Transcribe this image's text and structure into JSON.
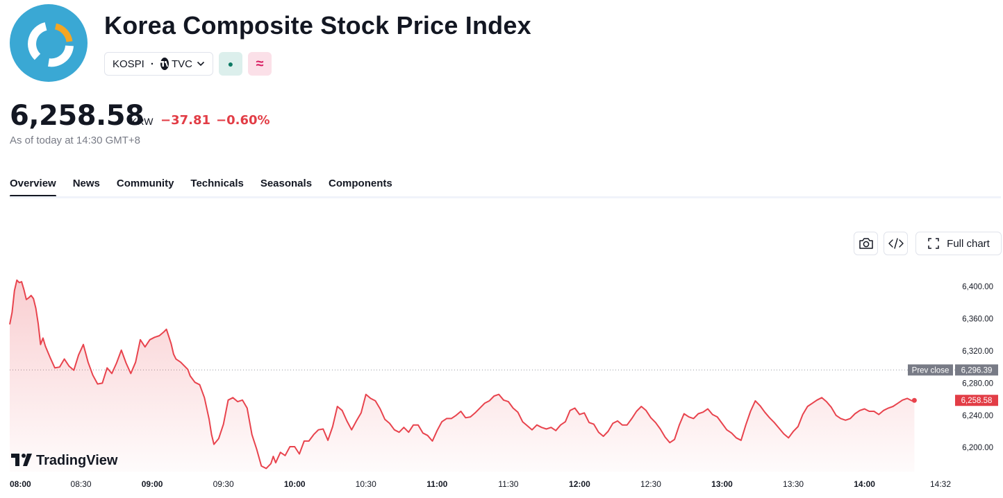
{
  "header": {
    "title": "Korea Composite Stock Price Index",
    "symbol": "KOSPI",
    "separator": "·",
    "exchange": "TVC",
    "market_status_glyph": "●",
    "delay_glyph": "≈"
  },
  "quote": {
    "price": "6,258.58",
    "currency": "KRW",
    "change": "−37.81",
    "change_percent": "−0.60%",
    "as_of": "As of today at 14:30 GMT+8"
  },
  "tabs": [
    {
      "label": "Overview",
      "active": true
    },
    {
      "label": "News",
      "active": false
    },
    {
      "label": "Community",
      "active": false
    },
    {
      "label": "Technicals",
      "active": false
    },
    {
      "label": "Seasonals",
      "active": false
    },
    {
      "label": "Components",
      "active": false
    }
  ],
  "toolbar": {
    "snapshot_icon": "camera-icon",
    "embed_icon": "code-icon",
    "full_chart_label": "Full chart"
  },
  "branding": {
    "watermark": "TradingView"
  },
  "colors": {
    "accent_red": "#e23d46",
    "line": "#e8434d",
    "prev_close_badge": "#787b86",
    "logo_blue": "#3aa8d4",
    "logo_orange": "#f5a623"
  },
  "chart_data": {
    "type": "area",
    "y_range": [
      6170,
      6420
    ],
    "y_ticks": [
      {
        "value": 6400,
        "label": "6,400.00"
      },
      {
        "value": 6360,
        "label": "6,360.00"
      },
      {
        "value": 6320,
        "label": "6,320.00"
      },
      {
        "value": 6280,
        "label": "6,280.00"
      },
      {
        "value": 6240,
        "label": "6,240.00"
      },
      {
        "value": 6200,
        "label": "6,200.00"
      }
    ],
    "x_ticks": [
      {
        "t": 0,
        "label": "08:00",
        "bold": true
      },
      {
        "t": 30,
        "label": "08:30",
        "bold": false
      },
      {
        "t": 60,
        "label": "09:00",
        "bold": true
      },
      {
        "t": 90,
        "label": "09:30",
        "bold": false
      },
      {
        "t": 120,
        "label": "10:00",
        "bold": true
      },
      {
        "t": 150,
        "label": "10:30",
        "bold": false
      },
      {
        "t": 180,
        "label": "11:00",
        "bold": true
      },
      {
        "t": 210,
        "label": "11:30",
        "bold": false
      },
      {
        "t": 240,
        "label": "12:00",
        "bold": true
      },
      {
        "t": 270,
        "label": "12:30",
        "bold": false
      },
      {
        "t": 300,
        "label": "13:00",
        "bold": true
      },
      {
        "t": 330,
        "label": "13:30",
        "bold": false
      },
      {
        "t": 360,
        "label": "14:00",
        "bold": true
      },
      {
        "t": 392,
        "label": "14:32",
        "bold": false
      }
    ],
    "t_range": [
      0,
      392
    ],
    "prev_close": {
      "value": 6296.39,
      "label": "Prev close",
      "value_label": "6,296.39"
    },
    "last": {
      "value": 6258.58,
      "label": "6,258.58"
    },
    "series": [
      {
        "values": [
          [
            0,
            6353
          ],
          [
            1,
            6368
          ],
          [
            2,
            6395
          ],
          [
            3,
            6408
          ],
          [
            4,
            6405
          ],
          [
            5,
            6406
          ],
          [
            6,
            6396
          ],
          [
            7,
            6384
          ],
          [
            8,
            6386
          ],
          [
            9,
            6389
          ],
          [
            10,
            6385
          ],
          [
            11,
            6373
          ],
          [
            12,
            6354
          ],
          [
            13,
            6328
          ],
          [
            14,
            6336
          ],
          [
            15,
            6326
          ],
          [
            17,
            6312
          ],
          [
            19,
            6299
          ],
          [
            21,
            6300
          ],
          [
            23,
            6310
          ],
          [
            25,
            6301
          ],
          [
            27,
            6296
          ],
          [
            29,
            6315
          ],
          [
            31,
            6328
          ],
          [
            33,
            6306
          ],
          [
            35,
            6290
          ],
          [
            37,
            6279
          ],
          [
            39,
            6280
          ],
          [
            41,
            6299
          ],
          [
            43,
            6292
          ],
          [
            45,
            6305
          ],
          [
            47,
            6321
          ],
          [
            49,
            6305
          ],
          [
            51,
            6292
          ],
          [
            53,
            6306
          ],
          [
            55,
            6334
          ],
          [
            57,
            6325
          ],
          [
            59,
            6334
          ],
          [
            61,
            6337
          ],
          [
            63,
            6339
          ],
          [
            65,
            6344
          ],
          [
            66,
            6347
          ],
          [
            68,
            6329
          ],
          [
            69,
            6316
          ],
          [
            70,
            6310
          ],
          [
            72,
            6306
          ],
          [
            74,
            6300
          ],
          [
            75,
            6297
          ],
          [
            76,
            6289
          ],
          [
            78,
            6281
          ],
          [
            80,
            6278
          ],
          [
            82,
            6262
          ],
          [
            84,
            6235
          ],
          [
            85,
            6216
          ],
          [
            86,
            6204
          ],
          [
            88,
            6211
          ],
          [
            90,
            6229
          ],
          [
            92,
            6259
          ],
          [
            94,
            6262
          ],
          [
            96,
            6257
          ],
          [
            98,
            6259
          ],
          [
            100,
            6249
          ],
          [
            102,
            6216
          ],
          [
            103,
            6207
          ],
          [
            104,
            6198
          ],
          [
            106,
            6177
          ],
          [
            108,
            6174
          ],
          [
            110,
            6180
          ],
          [
            111,
            6189
          ],
          [
            112,
            6181
          ],
          [
            114,
            6194
          ],
          [
            116,
            6190
          ],
          [
            118,
            6201
          ],
          [
            120,
            6201
          ],
          [
            122,
            6192
          ],
          [
            124,
            6208
          ],
          [
            126,
            6208
          ],
          [
            128,
            6216
          ],
          [
            130,
            6222
          ],
          [
            132,
            6223
          ],
          [
            134,
            6209
          ],
          [
            136,
            6226
          ],
          [
            138,
            6251
          ],
          [
            140,
            6246
          ],
          [
            142,
            6233
          ],
          [
            144,
            6222
          ],
          [
            146,
            6233
          ],
          [
            148,
            6243
          ],
          [
            150,
            6266
          ],
          [
            152,
            6261
          ],
          [
            154,
            6258
          ],
          [
            156,
            6248
          ],
          [
            158,
            6235
          ],
          [
            160,
            6230
          ],
          [
            162,
            6222
          ],
          [
            164,
            6219
          ],
          [
            166,
            6225
          ],
          [
            168,
            6219
          ],
          [
            170,
            6228
          ],
          [
            172,
            6228
          ],
          [
            174,
            6218
          ],
          [
            176,
            6215
          ],
          [
            178,
            6208
          ],
          [
            180,
            6221
          ],
          [
            182,
            6232
          ],
          [
            184,
            6236
          ],
          [
            186,
            6236
          ],
          [
            188,
            6240
          ],
          [
            190,
            6245
          ],
          [
            192,
            6237
          ],
          [
            194,
            6238
          ],
          [
            196,
            6243
          ],
          [
            198,
            6249
          ],
          [
            200,
            6255
          ],
          [
            202,
            6258
          ],
          [
            204,
            6264
          ],
          [
            206,
            6266
          ],
          [
            208,
            6259
          ],
          [
            210,
            6257
          ],
          [
            212,
            6249
          ],
          [
            214,
            6244
          ],
          [
            216,
            6232
          ],
          [
            218,
            6227
          ],
          [
            220,
            6222
          ],
          [
            222,
            6228
          ],
          [
            224,
            6225
          ],
          [
            226,
            6223
          ],
          [
            228,
            6225
          ],
          [
            230,
            6221
          ],
          [
            232,
            6228
          ],
          [
            234,
            6232
          ],
          [
            236,
            6246
          ],
          [
            238,
            6249
          ],
          [
            240,
            6241
          ],
          [
            242,
            6243
          ],
          [
            244,
            6231
          ],
          [
            246,
            6229
          ],
          [
            248,
            6219
          ],
          [
            250,
            6214
          ],
          [
            252,
            6220
          ],
          [
            254,
            6230
          ],
          [
            256,
            6233
          ],
          [
            258,
            6228
          ],
          [
            260,
            6228
          ],
          [
            262,
            6236
          ],
          [
            264,
            6245
          ],
          [
            266,
            6251
          ],
          [
            268,
            6246
          ],
          [
            270,
            6237
          ],
          [
            272,
            6231
          ],
          [
            274,
            6223
          ],
          [
            276,
            6213
          ],
          [
            278,
            6206
          ],
          [
            280,
            6210
          ],
          [
            282,
            6228
          ],
          [
            284,
            6242
          ],
          [
            286,
            6238
          ],
          [
            288,
            6236
          ],
          [
            290,
            6242
          ],
          [
            292,
            6244
          ],
          [
            294,
            6248
          ],
          [
            296,
            6241
          ],
          [
            298,
            6238
          ],
          [
            300,
            6230
          ],
          [
            302,
            6222
          ],
          [
            304,
            6218
          ],
          [
            306,
            6212
          ],
          [
            308,
            6209
          ],
          [
            310,
            6228
          ],
          [
            312,
            6245
          ],
          [
            314,
            6258
          ],
          [
            316,
            6252
          ],
          [
            318,
            6244
          ],
          [
            320,
            6237
          ],
          [
            322,
            6231
          ],
          [
            324,
            6224
          ],
          [
            326,
            6217
          ],
          [
            328,
            6212
          ],
          [
            330,
            6220
          ],
          [
            332,
            6226
          ],
          [
            334,
            6241
          ],
          [
            336,
            6251
          ],
          [
            338,
            6255
          ],
          [
            340,
            6259
          ],
          [
            342,
            6262
          ],
          [
            344,
            6257
          ],
          [
            346,
            6250
          ],
          [
            348,
            6240
          ],
          [
            350,
            6236
          ],
          [
            352,
            6234
          ],
          [
            354,
            6236
          ],
          [
            356,
            6242
          ],
          [
            358,
            6246
          ],
          [
            360,
            6248
          ],
          [
            362,
            6245
          ],
          [
            364,
            6245
          ],
          [
            366,
            6241
          ],
          [
            368,
            6246
          ],
          [
            370,
            6249
          ],
          [
            372,
            6251
          ],
          [
            374,
            6255
          ],
          [
            376,
            6259
          ],
          [
            378,
            6261
          ],
          [
            380,
            6258
          ],
          [
            381,
            6258.58
          ]
        ]
      }
    ]
  }
}
